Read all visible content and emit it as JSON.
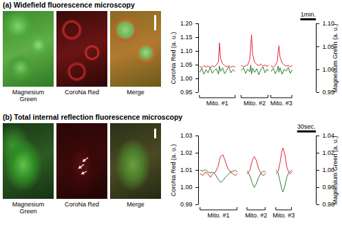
{
  "panels": [
    {
      "image_labels": [
        "Magnesium Green",
        "CoroNa Red",
        "Merge"
      ]
    },
    {
      "image_labels": [
        "Magnesium Green",
        "CoroNa Red",
        "Merge"
      ]
    }
  ],
  "chart_data": [
    {
      "type": "line",
      "title": "(a) Widefield fluorescence microscopy",
      "x": [
        0,
        8,
        16,
        24,
        32,
        40,
        48,
        56,
        64,
        72,
        76,
        80,
        88,
        96,
        104,
        112,
        120,
        128,
        136,
        150,
        161,
        169,
        177,
        185,
        193,
        197,
        200,
        204,
        212,
        220,
        228,
        236,
        244,
        252,
        260,
        265,
        270,
        276,
        284,
        292,
        300,
        303,
        306,
        310,
        318,
        326,
        334,
        342,
        350,
        357
      ],
      "series": [
        {
          "color": "#e8242c",
          "values": [
            1.045,
            1.04,
            1.048,
            1.043,
            1.046,
            1.041,
            1.047,
            1.044,
            1.05,
            1.062,
            1.13,
            1.075,
            1.055,
            1.048,
            1.044,
            1.047,
            1.042,
            1.046,
            1.043,
            null,
            1.048,
            1.043,
            1.047,
            1.05,
            1.07,
            1.12,
            1.16,
            1.09,
            1.06,
            1.052,
            1.048,
            1.054,
            1.046,
            1.05,
            1.045,
            1.048,
            null,
            1.046,
            1.042,
            1.048,
            1.065,
            1.1,
            1.12,
            1.08,
            1.058,
            1.05,
            1.046,
            1.049,
            1.044,
            1.047
          ]
        },
        {
          "color": "#2e7d32",
          "axis": "y2",
          "values": [
            0.995,
            1.003,
            0.99,
            1.0,
            0.993,
            1.005,
            0.992,
            0.998,
            1.002,
            0.99,
            1.008,
            0.996,
            1.004,
            0.991,
            0.999,
            1.006,
            0.993,
            1.0,
            0.996,
            null,
            0.998,
            1.004,
            0.992,
            1.001,
            0.995,
            1.01,
            0.99,
            1.003,
            0.994,
            1.002,
            0.989,
            1.0,
            1.006,
            0.993,
            1.001,
            0.997,
            null,
            0.996,
            1.003,
            0.991,
            1.0,
            1.008,
            0.994,
            1.004,
            0.99,
            1.001,
            0.997,
            1.005,
            0.992,
            0.999
          ]
        }
      ],
      "xlim": [
        -5,
        450
      ],
      "ylim": [
        0.95,
        1.2
      ],
      "yticks": [
        {
          "value": 0.95,
          "label": "0.95"
        },
        {
          "value": 1.0,
          "label": "1.00"
        },
        {
          "value": 1.05,
          "label": "1.05"
        },
        {
          "value": 1.1,
          "label": "1.10"
        },
        {
          "value": 1.15,
          "label": "1.15"
        },
        {
          "value": 1.2,
          "label": "1.20"
        }
      ],
      "y2lim": [
        0.95,
        1.1
      ],
      "y2ticks": [
        {
          "value": 0.95,
          "label": "0.95"
        },
        {
          "value": 1.0,
          "label": "1.00"
        },
        {
          "value": 1.05,
          "label": "1.05"
        },
        {
          "value": 1.1,
          "label": "1.10"
        }
      ],
      "ylabel": "CoroNa Red (a. u.)",
      "y2label": "Magnesium Green (a. u.)",
      "annotations": [
        {
          "text": "Mito. #1",
          "x": [
            0,
            138
          ]
        },
        {
          "text": "Mito. #2",
          "x": [
            161,
            265
          ]
        },
        {
          "text": "Mito. #3",
          "x": [
            276,
            357
          ]
        }
      ],
      "scale_bar": {
        "label": "1min.",
        "length": 60
      }
    },
    {
      "type": "line",
      "title": "(b) Total internal reflection fluorescence microscopy",
      "x": [
        0,
        4,
        8,
        12,
        16,
        20,
        24,
        28,
        32,
        36,
        40,
        44,
        48,
        52,
        56,
        59,
        67,
        75,
        79,
        83,
        86,
        89,
        93,
        97,
        101,
        104,
        112,
        121,
        124,
        127,
        130,
        132,
        135,
        138,
        141,
        144,
        146
      ],
      "series": [
        {
          "color": "#e8242c",
          "values": [
            1.008,
            1.007,
            1.009,
            1.008,
            1.006,
            1.008,
            1.009,
            1.012,
            1.018,
            1.019,
            1.015,
            1.011,
            1.009,
            1.008,
            1.007,
            1.008,
            null,
            1.008,
            1.01,
            1.016,
            1.018,
            1.016,
            1.011,
            1.008,
            1.007,
            1.008,
            null,
            1.008,
            1.009,
            1.014,
            1.021,
            1.023,
            1.019,
            1.012,
            1.009,
            1.008,
            1.009
          ]
        },
        {
          "color": "#2e7d32",
          "axis": "y2",
          "values": [
            1.0,
            0.999,
            1.001,
            0.998,
            0.997,
            0.998,
            0.995,
            0.99,
            0.986,
            0.988,
            0.992,
            0.995,
            0.998,
            0.999,
            1.0,
            0.998,
            null,
            0.999,
            0.994,
            0.985,
            0.98,
            0.984,
            0.992,
            0.997,
            0.999,
            0.998,
            null,
            1.0,
            0.997,
            0.988,
            0.978,
            0.975,
            0.982,
            0.992,
            0.997,
            0.999,
            1.0
          ]
        }
      ],
      "xlim": [
        -3,
        185
      ],
      "ylim": [
        0.99,
        1.03
      ],
      "yticks": [
        {
          "value": 0.99,
          "label": "0.99"
        },
        {
          "value": 1.0,
          "label": "1.00"
        },
        {
          "value": 1.01,
          "label": "1.01"
        },
        {
          "value": 1.02,
          "label": "1.02"
        },
        {
          "value": 1.03,
          "label": "1.03"
        }
      ],
      "y2lim": [
        0.96,
        1.04
      ],
      "y2ticks": [
        {
          "value": 0.96,
          "label": "0.96"
        },
        {
          "value": 0.98,
          "label": "0.98"
        },
        {
          "value": 1.0,
          "label": "1.00"
        },
        {
          "value": 1.02,
          "label": "1.02"
        },
        {
          "value": 1.04,
          "label": "1.04"
        }
      ],
      "ylabel": "CoroNa Red (a. u.)",
      "y2label": "Magnesium Green (a. u.)",
      "annotations": [
        {
          "text": "Mito. #1",
          "x": [
            0,
            59
          ]
        },
        {
          "text": "Mito. #2",
          "x": [
            75,
            104
          ]
        },
        {
          "text": "Mito. #3",
          "x": [
            121,
            146
          ]
        }
      ],
      "scale_bar": {
        "label": "30sec.",
        "length": 30
      }
    }
  ]
}
